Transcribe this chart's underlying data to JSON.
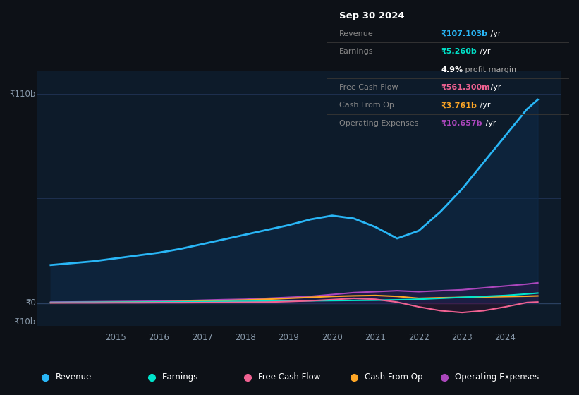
{
  "bg_color": "#0d1117",
  "plot_bg_color": "#0d1b2a",
  "grid_color": "#1e3050",
  "ylabel_top": "₹110b",
  "ylabel_zero": "₹0",
  "ylabel_neg": "-₹10b",
  "x_ticks": [
    "2015",
    "2016",
    "2017",
    "2018",
    "2019",
    "2020",
    "2021",
    "2022",
    "2023",
    "2024"
  ],
  "legend": [
    {
      "label": "Revenue",
      "color": "#29b6f6"
    },
    {
      "label": "Earnings",
      "color": "#00e5cc"
    },
    {
      "label": "Free Cash Flow",
      "color": "#f06292"
    },
    {
      "label": "Cash From Op",
      "color": "#ffa726"
    },
    {
      "label": "Operating Expenses",
      "color": "#ab47bc"
    }
  ],
  "x_values": [
    2013.5,
    2014.0,
    2014.5,
    2015.0,
    2015.5,
    2016.0,
    2016.5,
    2017.0,
    2017.5,
    2018.0,
    2018.5,
    2019.0,
    2019.5,
    2020.0,
    2020.5,
    2021.0,
    2021.5,
    2022.0,
    2022.5,
    2023.0,
    2023.5,
    2024.0,
    2024.5,
    2024.75
  ],
  "revenue": [
    20.0,
    21.0,
    22.0,
    23.5,
    25.0,
    26.5,
    28.5,
    31.0,
    33.5,
    36.0,
    38.5,
    41.0,
    44.0,
    46.0,
    44.5,
    40.0,
    34.0,
    38.0,
    48.0,
    60.0,
    74.0,
    88.0,
    102.0,
    107.0
  ],
  "earnings": [
    0.3,
    0.35,
    0.4,
    0.45,
    0.5,
    0.55,
    0.6,
    0.7,
    0.8,
    0.9,
    1.0,
    1.1,
    1.2,
    1.3,
    1.4,
    1.5,
    1.7,
    2.0,
    2.5,
    3.0,
    3.5,
    4.0,
    4.8,
    5.26
  ],
  "free_cash_flow": [
    0.1,
    0.1,
    0.1,
    0.15,
    0.15,
    0.2,
    0.2,
    0.25,
    0.3,
    0.4,
    0.5,
    0.8,
    1.2,
    1.8,
    2.5,
    2.0,
    0.5,
    -2.0,
    -4.0,
    -5.0,
    -4.0,
    -2.0,
    0.3,
    0.56
  ],
  "cash_from_op": [
    0.2,
    0.25,
    0.3,
    0.4,
    0.5,
    0.6,
    0.8,
    1.0,
    1.3,
    1.6,
    2.0,
    2.5,
    3.0,
    3.5,
    3.8,
    4.0,
    3.5,
    2.5,
    2.8,
    3.0,
    3.2,
    3.4,
    3.6,
    3.761
  ],
  "operating_expenses": [
    0.5,
    0.6,
    0.7,
    0.8,
    0.9,
    1.0,
    1.2,
    1.5,
    1.8,
    2.0,
    2.5,
    3.0,
    3.5,
    4.5,
    5.5,
    6.0,
    6.5,
    6.0,
    6.5,
    7.0,
    8.0,
    9.0,
    10.0,
    10.657
  ],
  "tooltip": {
    "bg_color": "#0a0a0a",
    "border_color": "#333333",
    "title": "Sep 30 2024",
    "title_color": "#ffffff",
    "label_color": "#888888",
    "rows": [
      {
        "label": "Revenue",
        "value": "₹107.103b",
        "suffix": " /yr",
        "value_color": "#29b6f6"
      },
      {
        "label": "Earnings",
        "value": "₹5.260b",
        "suffix": " /yr",
        "value_color": "#00e5cc"
      },
      {
        "label": "",
        "value": "4.9%",
        "suffix": " profit margin",
        "value_color": "#ffffff",
        "suffix_color": "#aaaaaa"
      },
      {
        "label": "Free Cash Flow",
        "value": "₹561.300m",
        "suffix": " /yr",
        "value_color": "#f06292"
      },
      {
        "label": "Cash From Op",
        "value": "₹3.761b",
        "suffix": " /yr",
        "value_color": "#ffa726"
      },
      {
        "label": "Operating Expenses",
        "value": "₹10.657b",
        "suffix": " /yr",
        "value_color": "#ab47bc"
      }
    ]
  }
}
